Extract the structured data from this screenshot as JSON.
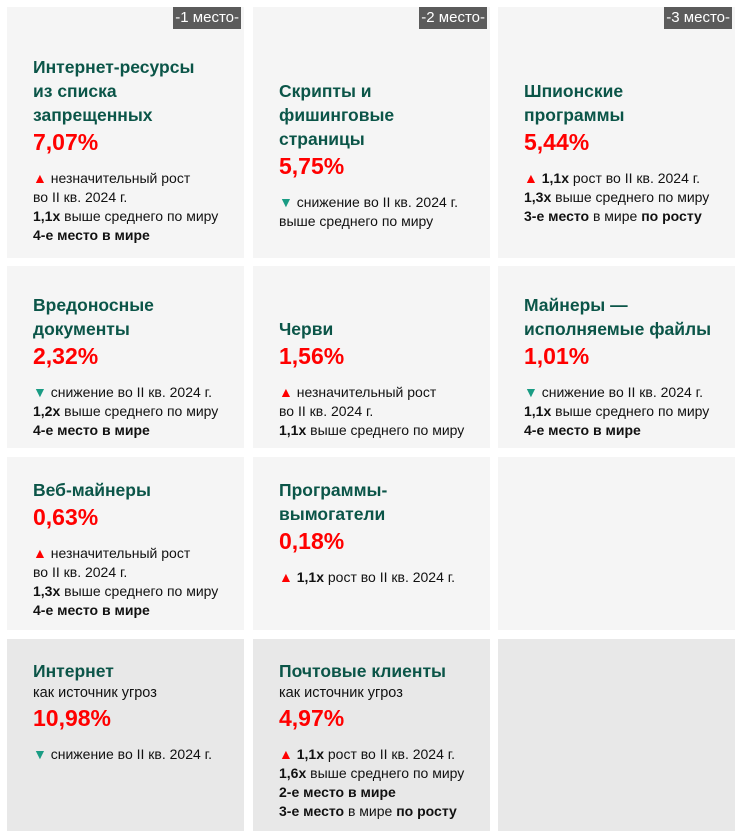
{
  "cards": [
    {
      "badge": "-1 место-",
      "title": [
        "Интернет-ресурсы",
        "из списка",
        "запрещенных"
      ],
      "pct": "7,07%",
      "lines": [
        [
          [
            "up",
            "▲"
          ],
          [
            "n",
            " незначительный рост"
          ]
        ],
        [
          [
            "n",
            "во II кв. 2024 г."
          ]
        ],
        [
          [
            "b",
            "1,1x"
          ],
          [
            "n",
            " выше среднего по миру"
          ]
        ],
        [
          [
            "b",
            "4-е место в мире"
          ]
        ]
      ]
    },
    {
      "badge": "-2 место-",
      "title": [
        "Скрипты и",
        "фишинговые",
        "страницы"
      ],
      "pct": "5,75%",
      "lines": [
        [
          [
            "down",
            "▼"
          ],
          [
            "n",
            " снижение во II кв. 2024 г."
          ]
        ],
        [
          [
            "n",
            "выше среднего по миру"
          ]
        ]
      ]
    },
    {
      "badge": "-3 место-",
      "title": [
        "Шпионские",
        "программы"
      ],
      "pct": "5,44%",
      "lines": [
        [
          [
            "up",
            "▲"
          ],
          [
            "b",
            " 1,1x"
          ],
          [
            "n",
            " рост во II кв. 2024 г."
          ]
        ],
        [
          [
            "b",
            "1,3x"
          ],
          [
            "n",
            " выше среднего по миру"
          ]
        ],
        [
          [
            "b",
            "3-е место"
          ],
          [
            "n",
            " в мире "
          ],
          [
            "b",
            "по росту"
          ]
        ]
      ]
    },
    {
      "title": [
        "Вредоносные",
        "документы"
      ],
      "pct": "2,32%",
      "lines": [
        [
          [
            "down",
            "▼"
          ],
          [
            "n",
            " снижение во II кв. 2024 г."
          ]
        ],
        [
          [
            "b",
            "1,2x"
          ],
          [
            "n",
            " выше среднего по миру"
          ]
        ],
        [
          [
            "b",
            "4-е место в мире"
          ]
        ]
      ]
    },
    {
      "title": [
        "Черви"
      ],
      "pct": "1,56%",
      "lines": [
        [
          [
            "up",
            "▲"
          ],
          [
            "n",
            " незначительный рост"
          ]
        ],
        [
          [
            "n",
            "во II кв. 2024 г."
          ]
        ],
        [
          [
            "b",
            "1,1x"
          ],
          [
            "n",
            " выше среднего по миру"
          ]
        ]
      ]
    },
    {
      "title": [
        "Майнеры —",
        "исполняемые файлы"
      ],
      "pct": "1,01%",
      "lines": [
        [
          [
            "down",
            "▼"
          ],
          [
            "n",
            " снижение во II кв. 2024 г."
          ]
        ],
        [
          [
            "b",
            "1,1x"
          ],
          [
            "n",
            " выше среднего по миру"
          ]
        ],
        [
          [
            "b",
            "4-е место в мире"
          ]
        ]
      ]
    },
    {
      "title": [
        "Веб-майнеры"
      ],
      "pct": "0,63%",
      "lines": [
        [
          [
            "up",
            "▲"
          ],
          [
            "n",
            " незначительный рост"
          ]
        ],
        [
          [
            "n",
            "во II кв. 2024 г."
          ]
        ],
        [
          [
            "b",
            "1,3x"
          ],
          [
            "n",
            " выше среднего по миру"
          ]
        ],
        [
          [
            "b",
            "4-е место в мире"
          ]
        ]
      ]
    },
    {
      "title": [
        "Программы-",
        "вымогатели"
      ],
      "pct": "0,18%",
      "lines": [
        [
          [
            "up",
            "▲"
          ],
          [
            "b",
            " 1,1x"
          ],
          [
            "n",
            " рост во II кв. 2024 г."
          ]
        ]
      ]
    },
    {
      "title": [],
      "lines": []
    },
    {
      "title": [
        "Интернет"
      ],
      "sub": "как источник угроз",
      "pct": "10,98%",
      "lines": [
        [
          [
            "down",
            "▼"
          ],
          [
            "n",
            " снижение во II кв. 2024 г."
          ]
        ]
      ]
    },
    {
      "title": [
        "Почтовые клиенты"
      ],
      "sub": "как источник угроз",
      "pct": "4,97%",
      "lines": [
        [
          [
            "up",
            "▲"
          ],
          [
            "b",
            " 1,1x"
          ],
          [
            "n",
            " рост во II кв. 2024 г."
          ]
        ],
        [
          [
            "b",
            "1,6x"
          ],
          [
            "n",
            " выше среднего по миру"
          ]
        ],
        [
          [
            "b",
            "2-е место в мире"
          ]
        ],
        [
          [
            "b",
            "3-е место"
          ],
          [
            "n",
            " в мире "
          ],
          [
            "b",
            "по росту"
          ]
        ]
      ]
    },
    {
      "title": [],
      "lines": []
    }
  ]
}
